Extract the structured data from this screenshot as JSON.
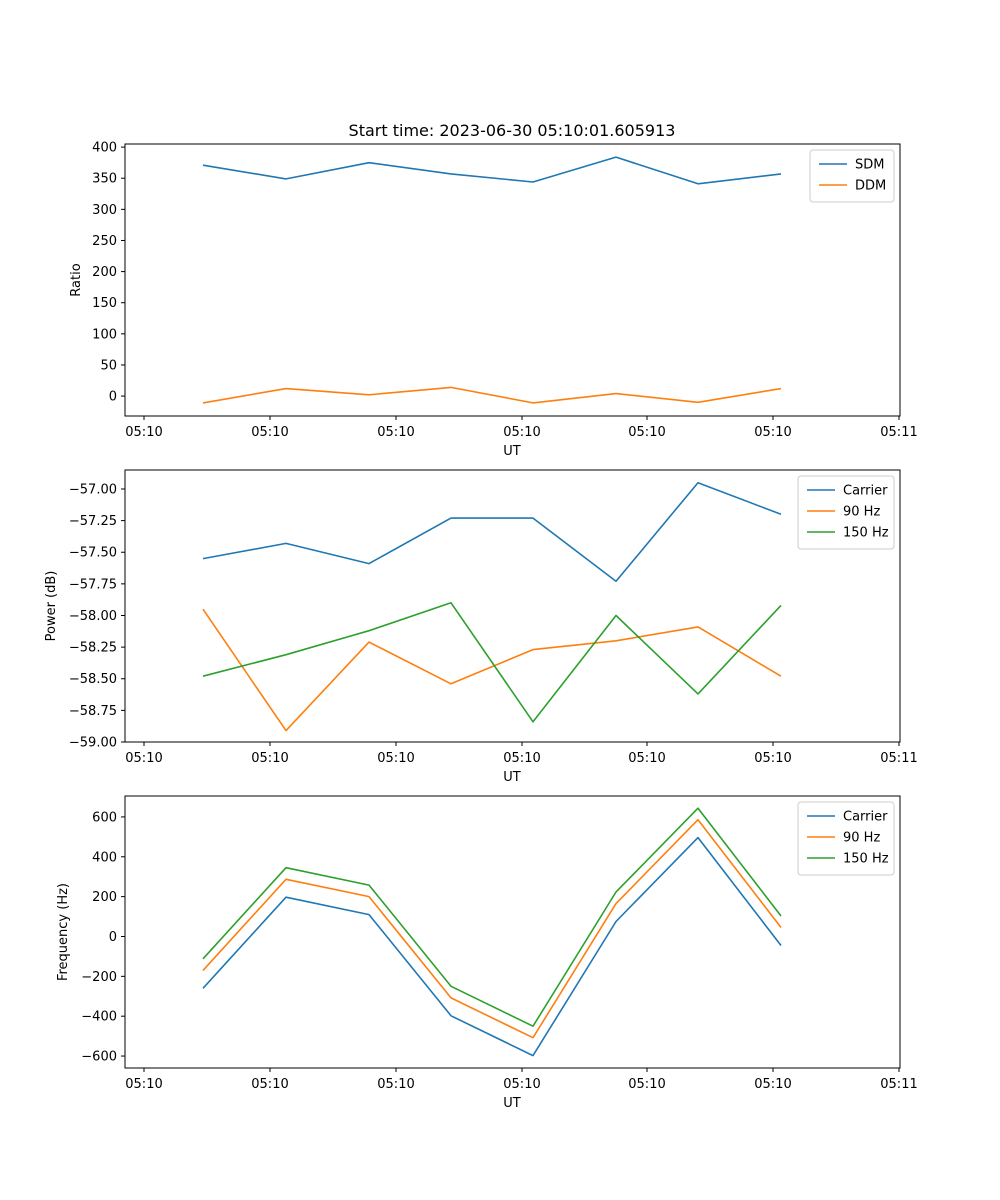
{
  "title": "Start time: 2023-06-30 05:10:01.605913",
  "colors": {
    "blue": "#1f77b4",
    "orange": "#ff7f0e",
    "green": "#2ca02c"
  },
  "chart_data": [
    {
      "type": "line",
      "title": "Start time: 2023-06-30 05:10:01.605913",
      "xlabel": "UT",
      "ylabel": "Ratio",
      "x_tick_labels": [
        "05:10",
        "05:10",
        "05:10",
        "05:10",
        "05:10",
        "05:10",
        "05:10"
      ],
      "last_x_tick_label": "05:11",
      "y_ticks": [
        0,
        50,
        100,
        150,
        200,
        250,
        300,
        350,
        400
      ],
      "y_tick_labels": [
        "0",
        "50",
        "100",
        "150",
        "200",
        "250",
        "300",
        "350",
        "400"
      ],
      "ylim": [
        -32,
        405
      ],
      "legend": "top-right",
      "series": [
        {
          "name": "SDM",
          "color": "#1f77b4",
          "values": [
            371,
            349,
            375,
            357,
            344,
            384,
            341,
            357
          ]
        },
        {
          "name": "DDM",
          "color": "#ff7f0e",
          "values": [
            -11,
            12,
            2,
            14,
            -11,
            4,
            -10,
            12
          ]
        }
      ]
    },
    {
      "type": "line",
      "xlabel": "UT",
      "ylabel": "Power (dB)",
      "x_tick_labels": [
        "05:10",
        "05:10",
        "05:10",
        "05:10",
        "05:10",
        "05:10",
        "05:10"
      ],
      "last_x_tick_label": "05:11",
      "y_ticks": [
        -59.0,
        -58.75,
        -58.5,
        -58.25,
        -58.0,
        -57.75,
        -57.5,
        -57.25,
        -57.0
      ],
      "y_tick_labels": [
        "−59.00",
        "−58.75",
        "−58.50",
        "−58.25",
        "−58.00",
        "−57.75",
        "−57.50",
        "−57.25",
        "−57.00"
      ],
      "ylim": [
        -59.0,
        -56.85
      ],
      "legend": "top-right",
      "series": [
        {
          "name": "Carrier",
          "color": "#1f77b4",
          "values": [
            -57.55,
            -57.43,
            -57.59,
            -57.23,
            -57.23,
            -57.73,
            -56.95,
            -57.2
          ]
        },
        {
          "name": "90 Hz",
          "color": "#ff7f0e",
          "values": [
            -57.95,
            -58.91,
            -58.21,
            -58.54,
            -58.27,
            -58.2,
            -58.09,
            -58.48
          ]
        },
        {
          "name": "150 Hz",
          "color": "#2ca02c",
          "values": [
            -58.48,
            -58.31,
            -58.12,
            -57.9,
            -58.84,
            -58.0,
            -58.62,
            -57.92
          ]
        }
      ]
    },
    {
      "type": "line",
      "xlabel": "UT",
      "ylabel": "Frequency (Hz)",
      "x_tick_labels": [
        "05:10",
        "05:10",
        "05:10",
        "05:10",
        "05:10",
        "05:10",
        "05:10"
      ],
      "last_x_tick_label": "05:11",
      "y_ticks": [
        -600,
        -400,
        -200,
        0,
        200,
        400,
        600
      ],
      "y_tick_labels": [
        "−600",
        "−400",
        "−200",
        "0",
        "200",
        "400",
        "600"
      ],
      "ylim": [
        -660,
        705
      ],
      "legend": "top-right",
      "series": [
        {
          "name": "Carrier",
          "color": "#1f77b4",
          "values": [
            -260,
            197,
            110,
            -398,
            -598,
            75,
            496,
            -45
          ]
        },
        {
          "name": "90 Hz",
          "color": "#ff7f0e",
          "values": [
            -170,
            287,
            200,
            -308,
            -508,
            165,
            586,
            45
          ]
        },
        {
          "name": "150 Hz",
          "color": "#2ca02c",
          "values": [
            -112,
            345,
            258,
            -250,
            -450,
            223,
            644,
            103
          ]
        }
      ]
    }
  ]
}
